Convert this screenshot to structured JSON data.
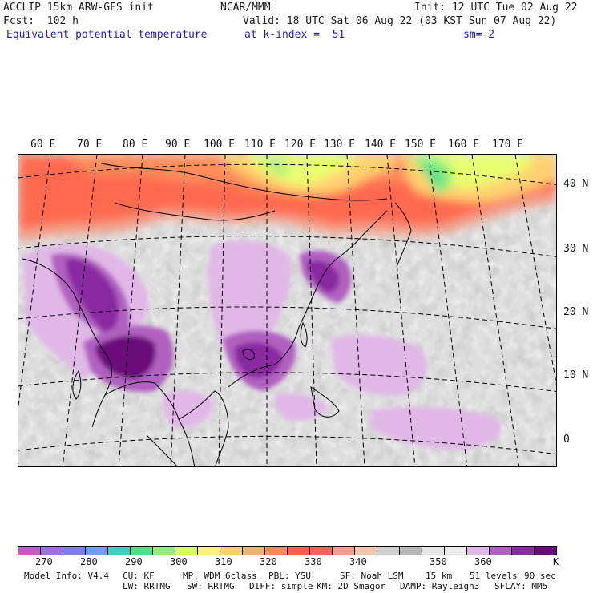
{
  "header": {
    "model_line": "ACCLIP 15km ARW-GFS init",
    "org": "NCAR/MMM",
    "init": "Init: 12 UTC Tue 02 Aug 22",
    "fcst": "Fcst:  102 h",
    "valid": "Valid: 18 UTC Sat 06 Aug 22 (03 KST Sun 07 Aug 22)",
    "field": "Equivalent potential temperature",
    "level": "at k-index =  51",
    "smooth": "sm= 2"
  },
  "lon_labels": [
    "60 E",
    "70 E",
    "80 E",
    "90 E",
    "100 E",
    "110 E",
    "120 E",
    "130 E",
    "140 E",
    "150 E",
    "160 E",
    "170 E"
  ],
  "lat_labels": [
    "40 N",
    "30 N",
    "20 N",
    "10 N",
    "0"
  ],
  "colorbar": {
    "colors": [
      "#cc55cc",
      "#a070e0",
      "#7f7fe6",
      "#6e9ff0",
      "#3ecfc0",
      "#4fe08a",
      "#8ff07a",
      "#d8ff60",
      "#fff07a",
      "#ffd070",
      "#ffb070",
      "#ff8a55",
      "#ff5f4f",
      "#f26458",
      "#f4a08c",
      "#f2c8b0",
      "#d0d0d0",
      "#b8b8b8",
      "#e6e6e6",
      "#ececec",
      "#e0b8e6",
      "#b060c0",
      "#8a2aa0",
      "#6a0a7a"
    ],
    "labels": [
      "270",
      "280",
      "290",
      "300",
      "310",
      "320",
      "330",
      "340",
      "350",
      "360"
    ],
    "unit": "K"
  },
  "footer": {
    "line1": [
      "Model Info: V4.4",
      "CU: KF",
      "MP: WDM 6class",
      "PBL: YSU",
      "SF: Noah LSM",
      "15 km",
      "51 levels",
      "90 sec"
    ],
    "line2": [
      "LW: RRTMG",
      "SW: RRTMG",
      "DIFF: simple",
      "KM: 2D Smagor",
      "DAMP: Rayleigh3",
      "SFLAY: MM5"
    ]
  }
}
